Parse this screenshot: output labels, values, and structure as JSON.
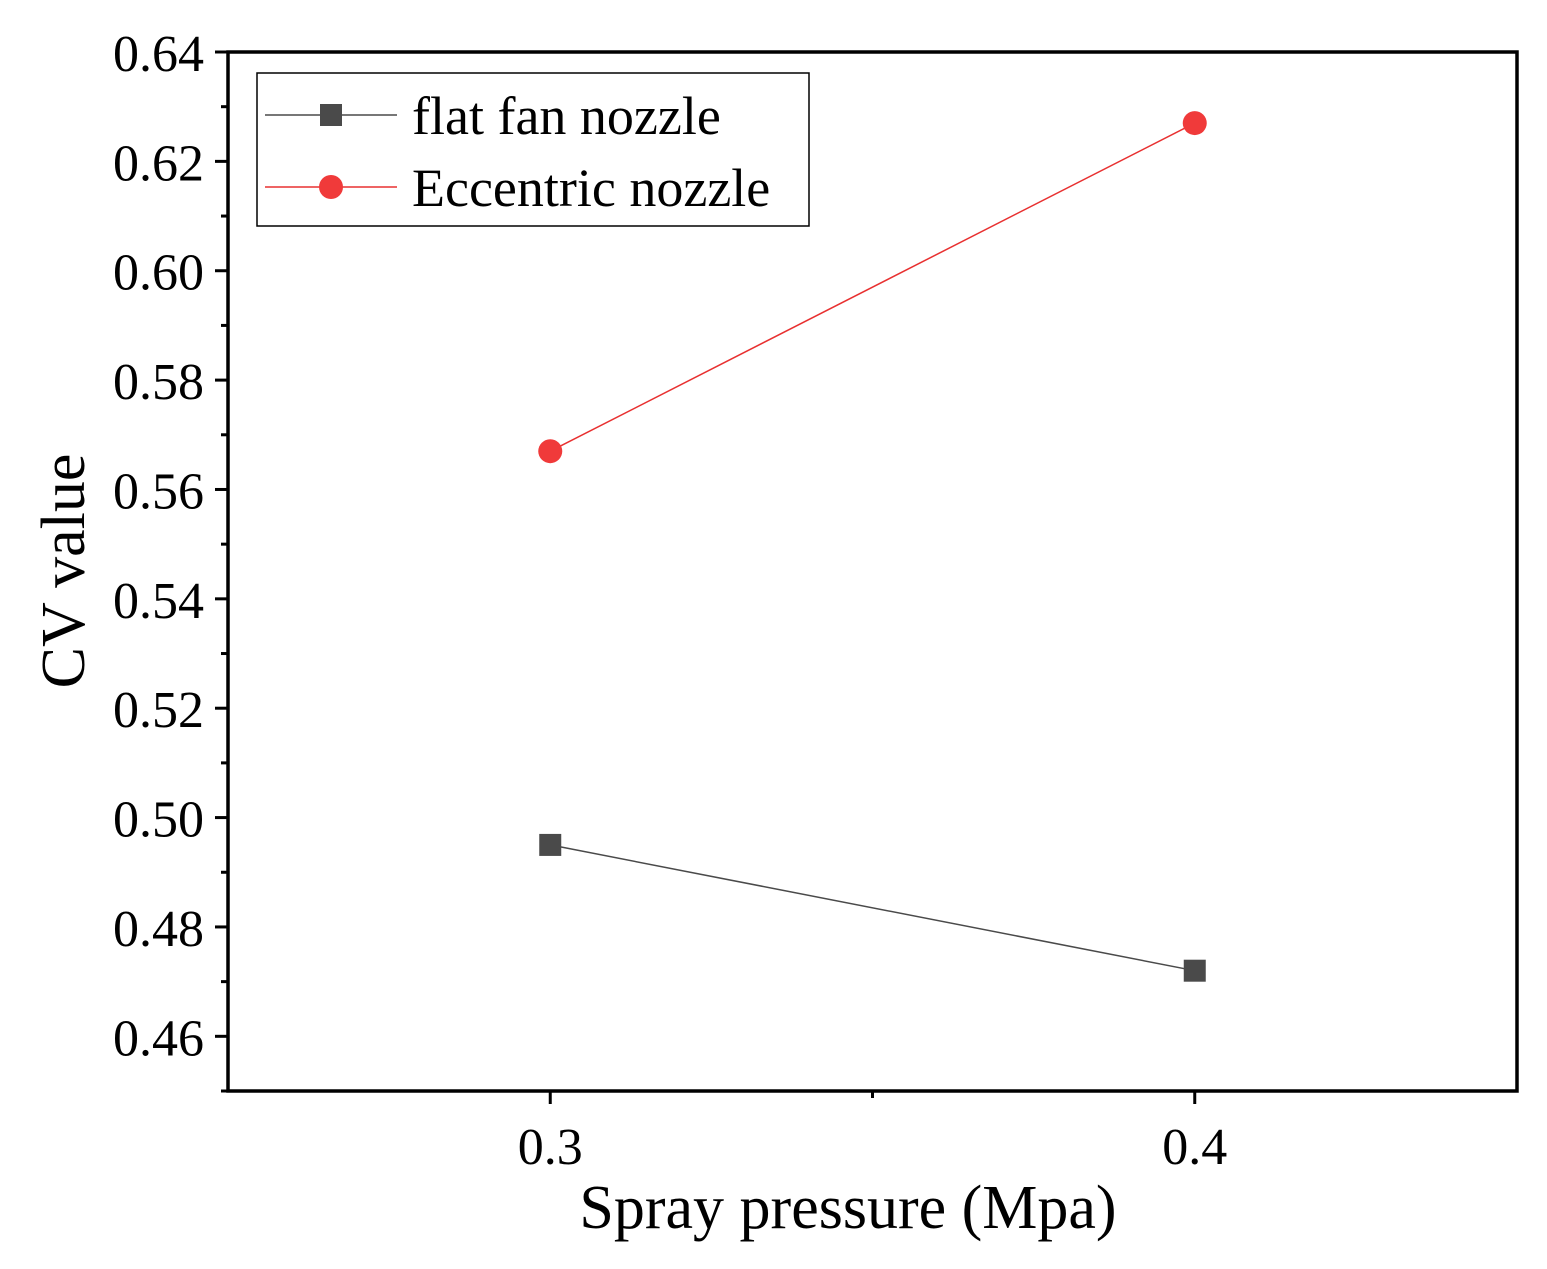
{
  "chart_data": {
    "type": "line",
    "title": "",
    "xlabel": "Spray pressure (Mpa)",
    "ylabel": "CV value",
    "x": [
      0.3,
      0.4
    ],
    "x_tick_labels": [
      "0.3",
      "0.4"
    ],
    "xlim": [
      0.25,
      0.45
    ],
    "ylim": [
      0.45,
      0.64
    ],
    "y_ticks": [
      0.46,
      0.48,
      0.5,
      0.52,
      0.54,
      0.56,
      0.58,
      0.6,
      0.62,
      0.64
    ],
    "y_tick_labels": [
      "0.46",
      "0.48",
      "0.50",
      "0.52",
      "0.54",
      "0.56",
      "0.58",
      "0.60",
      "0.62",
      "0.64"
    ],
    "grid": false,
    "legend_position": "top-left",
    "series": [
      {
        "name": "flat fan nozzle",
        "values": [
          0.495,
          0.472
        ],
        "color": "#4a4a4a",
        "line_color": "#4a4a4a",
        "marker": "square"
      },
      {
        "name": "Eccentric nozzle",
        "values": [
          0.567,
          0.627
        ],
        "color": "#f03a3a",
        "line_color": "#e83030",
        "marker": "circle"
      }
    ]
  }
}
